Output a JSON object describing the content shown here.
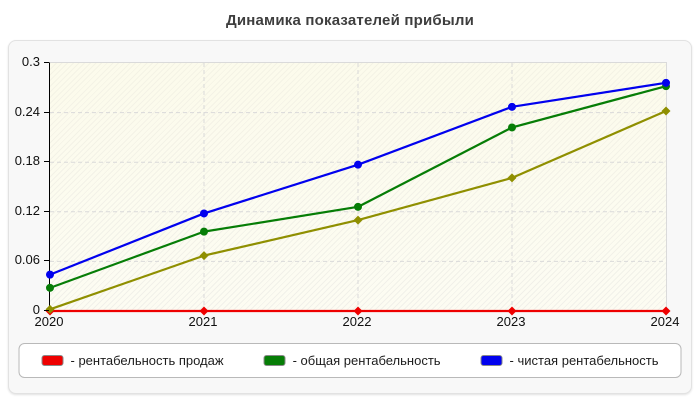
{
  "title": "Динамика показателей прибыли",
  "chart_data": {
    "type": "line",
    "categories": [
      "2020",
      "2021",
      "2022",
      "2023",
      "2024"
    ],
    "title": "Динамика показателей прибыли",
    "xlabel": "",
    "ylabel": "",
    "ylim": [
      0,
      0.3
    ],
    "y_tick_values": [
      0,
      0.06,
      0.12,
      0.18,
      0.24,
      0.3
    ],
    "y_tick_labels": [
      "0",
      "0.06",
      "0.12",
      "0.18",
      "0.24",
      "0.3"
    ],
    "grid": "dashed horizontal and vertical",
    "legend_position": "bottom",
    "series": [
      {
        "name": "рентабельность продаж",
        "color": "#ee0000",
        "marker": "diamond",
        "values": [
          0,
          0,
          0,
          0,
          0
        ]
      },
      {
        "name": "",
        "color": "#8f8f00",
        "marker": "diamond",
        "values": [
          0.002,
          0.067,
          0.11,
          0.161,
          0.242
        ]
      },
      {
        "name": "общая рентабельность",
        "color": "#067d06",
        "marker": "circle",
        "values": [
          0.028,
          0.096,
          0.126,
          0.222,
          0.272
        ]
      },
      {
        "name": "чистая рентабельность",
        "color": "#0101ee",
        "marker": "circle",
        "values": [
          0.044,
          0.118,
          0.177,
          0.247,
          0.276
        ]
      }
    ],
    "legend_entries": [
      {
        "label": "- рентабельность продаж",
        "color": "#ee0000"
      },
      {
        "label": "- общая рентабельность",
        "color": "#067d06"
      },
      {
        "label": "- чистая рентабельность",
        "color": "#0101ee"
      }
    ]
  },
  "colors": {
    "grid": "#d9d9d9",
    "axis": "#000000",
    "panel_bg": "#f8f8f8",
    "plot_bg": "#fdfcf2"
  }
}
